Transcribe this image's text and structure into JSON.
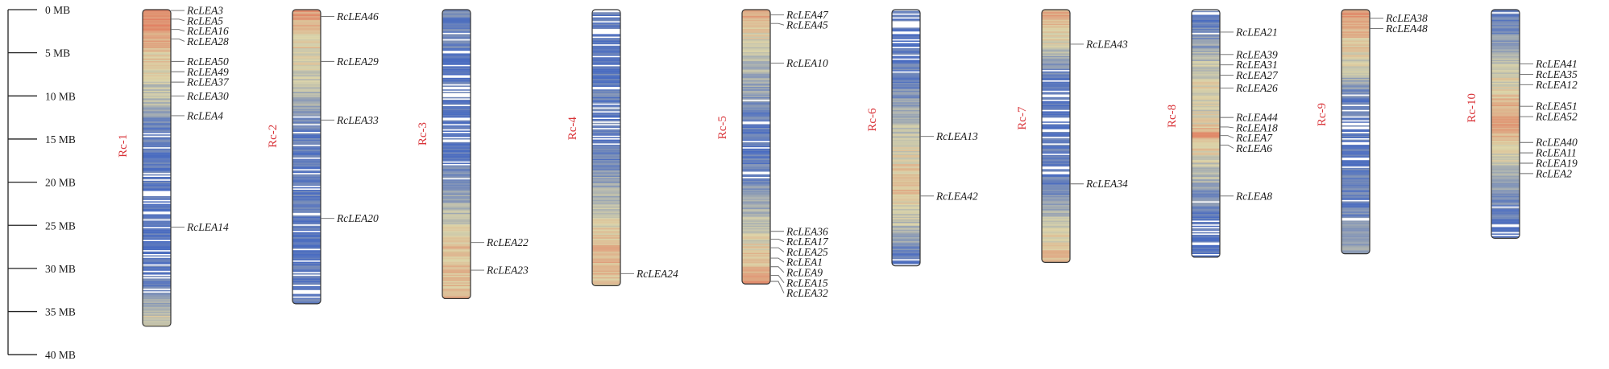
{
  "scale": {
    "unit": "MB",
    "ticks": [
      {
        "value": 0,
        "label": "0 MB"
      },
      {
        "value": 5,
        "label": "5 MB"
      },
      {
        "value": 10,
        "label": "10 MB"
      },
      {
        "value": 15,
        "label": "15 MB"
      },
      {
        "value": 20,
        "label": "20 MB"
      },
      {
        "value": 25,
        "label": "25 MB"
      },
      {
        "value": 30,
        "label": "30 MB"
      },
      {
        "value": 35,
        "label": "35 MB"
      },
      {
        "value": 40,
        "label": "40 MB"
      }
    ]
  },
  "colors": {
    "chromosome_label": "#d9353a",
    "density_low": "#4a6cc0",
    "density_mid": "#dcd4a8",
    "density_high": "#e2644a",
    "outline": "#333333",
    "leader_line": "#666666"
  },
  "chromosomes": [
    {
      "name": "Rc-1",
      "length_mb": 36.7,
      "density": [
        0.8,
        0.78,
        0.85,
        0.7,
        0.62,
        0.55,
        0.58,
        0.52,
        0.45,
        0.4,
        0.38,
        0.33,
        0.18,
        0.1,
        0.06,
        0.12,
        0.05,
        0.08,
        0.04,
        0.1,
        0.06,
        0.04,
        0.08,
        0.05,
        0.02,
        0.06,
        0.04,
        0.05,
        0.03,
        0.08,
        0.05,
        0.1,
        0.2,
        0.28,
        0.36,
        0.48,
        0.55
      ],
      "genes": [
        {
          "name": "RcLEA3",
          "pos_mb": 0.1
        },
        {
          "name": "RcLEA5",
          "pos_mb": 1.1
        },
        {
          "name": "RcLEA16",
          "pos_mb": 2.3
        },
        {
          "name": "RcLEA28",
          "pos_mb": 3.4
        },
        {
          "name": "RcLEA50",
          "pos_mb": 6.0
        },
        {
          "name": "RcLEA49",
          "pos_mb": 7.2
        },
        {
          "name": "RcLEA37",
          "pos_mb": 8.4
        },
        {
          "name": "RcLEA30",
          "pos_mb": 10.0
        },
        {
          "name": "RcLEA4",
          "pos_mb": 12.3
        },
        {
          "name": "RcLEA14",
          "pos_mb": 25.2
        }
      ]
    },
    {
      "name": "Rc-2",
      "length_mb": 34.1,
      "density": [
        0.75,
        0.7,
        0.62,
        0.58,
        0.55,
        0.5,
        0.48,
        0.45,
        0.42,
        0.38,
        0.32,
        0.28,
        0.15,
        0.1,
        0.08,
        0.12,
        0.06,
        0.1,
        0.05,
        0.04,
        0.06,
        0.08,
        0.04,
        0.05,
        0.03,
        0.06,
        0.02,
        0.04,
        0.06,
        0.05,
        0.04,
        0.06,
        0.08,
        0.05
      ],
      "genes": [
        {
          "name": "RcLEA46",
          "pos_mb": 0.8
        },
        {
          "name": "RcLEA29",
          "pos_mb": 6.0
        },
        {
          "name": "RcLEA33",
          "pos_mb": 12.8
        },
        {
          "name": "RcLEA20",
          "pos_mb": 24.2
        }
      ]
    },
    {
      "name": "Rc-3",
      "length_mb": 33.5,
      "density": [
        0.15,
        0.1,
        0.08,
        0.06,
        0.08,
        0.05,
        0.04,
        0.06,
        0.03,
        0.05,
        0.04,
        0.08,
        0.05,
        0.02,
        0.06,
        0.04,
        0.08,
        0.1,
        0.12,
        0.15,
        0.22,
        0.28,
        0.35,
        0.4,
        0.5,
        0.55,
        0.6,
        0.62,
        0.6,
        0.58,
        0.62,
        0.6,
        0.65
      ],
      "genes": [
        {
          "name": "RcLEA22",
          "pos_mb": 27.0
        },
        {
          "name": "RcLEA23",
          "pos_mb": 30.2
        }
      ]
    },
    {
      "name": "Rc-4",
      "length_mb": 32.0,
      "density": [
        0.06,
        0.04,
        0.08,
        0.05,
        0.03,
        0.06,
        0.04,
        0.1,
        0.06,
        0.08,
        0.12,
        0.08,
        0.05,
        0.1,
        0.08,
        0.06,
        0.12,
        0.1,
        0.2,
        0.25,
        0.3,
        0.35,
        0.4,
        0.45,
        0.5,
        0.55,
        0.62,
        0.68,
        0.65,
        0.62,
        0.6,
        0.58
      ],
      "genes": [
        {
          "name": "RcLEA24",
          "pos_mb": 30.6
        }
      ]
    },
    {
      "name": "Rc-5",
      "length_mb": 31.8,
      "density": [
        0.7,
        0.65,
        0.58,
        0.5,
        0.45,
        0.4,
        0.35,
        0.32,
        0.28,
        0.25,
        0.2,
        0.15,
        0.1,
        0.08,
        0.1,
        0.06,
        0.08,
        0.12,
        0.1,
        0.15,
        0.2,
        0.25,
        0.3,
        0.35,
        0.4,
        0.45,
        0.5,
        0.55,
        0.58,
        0.6,
        0.7,
        0.8
      ],
      "genes": [
        {
          "name": "RcLEA47",
          "pos_mb": 0.6
        },
        {
          "name": "RcLEA45",
          "pos_mb": 1.6
        },
        {
          "name": "RcLEA10",
          "pos_mb": 6.2
        },
        {
          "name": "RcLEA36",
          "pos_mb": 25.7
        },
        {
          "name": "RcLEA17",
          "pos_mb": 26.6
        },
        {
          "name": "RcLEA25",
          "pos_mb": 27.6
        },
        {
          "name": "RcLEA1",
          "pos_mb": 28.8
        },
        {
          "name": "RcLEA9",
          "pos_mb": 29.8
        },
        {
          "name": "RcLEA15",
          "pos_mb": 30.8
        },
        {
          "name": "RcLEA32",
          "pos_mb": 31.5
        }
      ]
    },
    {
      "name": "Rc-6",
      "length_mb": 29.7,
      "density": [
        0.05,
        0.04,
        0.06,
        0.05,
        0.03,
        0.08,
        0.06,
        0.1,
        0.12,
        0.18,
        0.22,
        0.28,
        0.32,
        0.38,
        0.42,
        0.45,
        0.48,
        0.52,
        0.55,
        0.58,
        0.62,
        0.58,
        0.52,
        0.45,
        0.4,
        0.32,
        0.25,
        0.15,
        0.08,
        0.05
      ],
      "genes": [
        {
          "name": "RcLEA13",
          "pos_mb": 14.7
        },
        {
          "name": "RcLEA42",
          "pos_mb": 21.6
        }
      ]
    },
    {
      "name": "Rc-7",
      "length_mb": 29.3,
      "density": [
        0.7,
        0.65,
        0.6,
        0.55,
        0.45,
        0.32,
        0.2,
        0.1,
        0.06,
        0.05,
        0.08,
        0.04,
        0.06,
        0.03,
        0.05,
        0.08,
        0.06,
        0.04,
        0.05,
        0.1,
        0.15,
        0.22,
        0.3,
        0.38,
        0.45,
        0.5,
        0.55,
        0.58,
        0.62
      ],
      "genes": [
        {
          "name": "RcLEA43",
          "pos_mb": 4.0
        },
        {
          "name": "RcLEA34",
          "pos_mb": 20.2
        }
      ]
    },
    {
      "name": "Rc-8",
      "length_mb": 28.7,
      "density": [
        0.05,
        0.08,
        0.12,
        0.18,
        0.25,
        0.35,
        0.4,
        0.45,
        0.5,
        0.52,
        0.48,
        0.45,
        0.5,
        0.55,
        0.78,
        0.6,
        0.52,
        0.45,
        0.4,
        0.35,
        0.25,
        0.18,
        0.12,
        0.08,
        0.06,
        0.05,
        0.04,
        0.05,
        0.06
      ],
      "genes": [
        {
          "name": "RcLEA21",
          "pos_mb": 2.6
        },
        {
          "name": "RcLEA39",
          "pos_mb": 5.2
        },
        {
          "name": "RcLEA31",
          "pos_mb": 6.4
        },
        {
          "name": "RcLEA27",
          "pos_mb": 7.6
        },
        {
          "name": "RcLEA26",
          "pos_mb": 9.1
        },
        {
          "name": "RcLEA44",
          "pos_mb": 12.5
        },
        {
          "name": "RcLEA18",
          "pos_mb": 13.6
        },
        {
          "name": "RcLEA7",
          "pos_mb": 14.6
        },
        {
          "name": "RcLEA6",
          "pos_mb": 15.7
        },
        {
          "name": "RcLEA8",
          "pos_mb": 21.6
        }
      ]
    },
    {
      "name": "Rc-9",
      "length_mb": 28.3,
      "density": [
        0.8,
        0.72,
        0.65,
        0.58,
        0.55,
        0.5,
        0.45,
        0.38,
        0.28,
        0.15,
        0.08,
        0.05,
        0.06,
        0.03,
        0.05,
        0.04,
        0.08,
        0.06,
        0.1,
        0.12,
        0.1,
        0.08,
        0.15,
        0.12,
        0.2,
        0.25,
        0.22,
        0.3
      ],
      "genes": [
        {
          "name": "RcLEA38",
          "pos_mb": 1.0
        },
        {
          "name": "RcLEA48",
          "pos_mb": 2.2
        }
      ]
    },
    {
      "name": "Rc-10",
      "length_mb": 26.5,
      "density": [
        0.1,
        0.12,
        0.15,
        0.2,
        0.3,
        0.35,
        0.4,
        0.45,
        0.5,
        0.55,
        0.62,
        0.7,
        0.78,
        0.68,
        0.6,
        0.55,
        0.48,
        0.42,
        0.35,
        0.28,
        0.22,
        0.15,
        0.1,
        0.08,
        0.06,
        0.05
      ],
      "genes": [
        {
          "name": "RcLEA41",
          "pos_mb": 6.3
        },
        {
          "name": "RcLEA35",
          "pos_mb": 7.5
        },
        {
          "name": "RcLEA12",
          "pos_mb": 8.7
        },
        {
          "name": "RcLEA51",
          "pos_mb": 11.2
        },
        {
          "name": "RcLEA52",
          "pos_mb": 12.4
        },
        {
          "name": "RcLEA40",
          "pos_mb": 15.4
        },
        {
          "name": "RcLEA11",
          "pos_mb": 16.6
        },
        {
          "name": "RcLEA19",
          "pos_mb": 17.8
        },
        {
          "name": "RcLEA2",
          "pos_mb": 19.0
        }
      ]
    }
  ]
}
